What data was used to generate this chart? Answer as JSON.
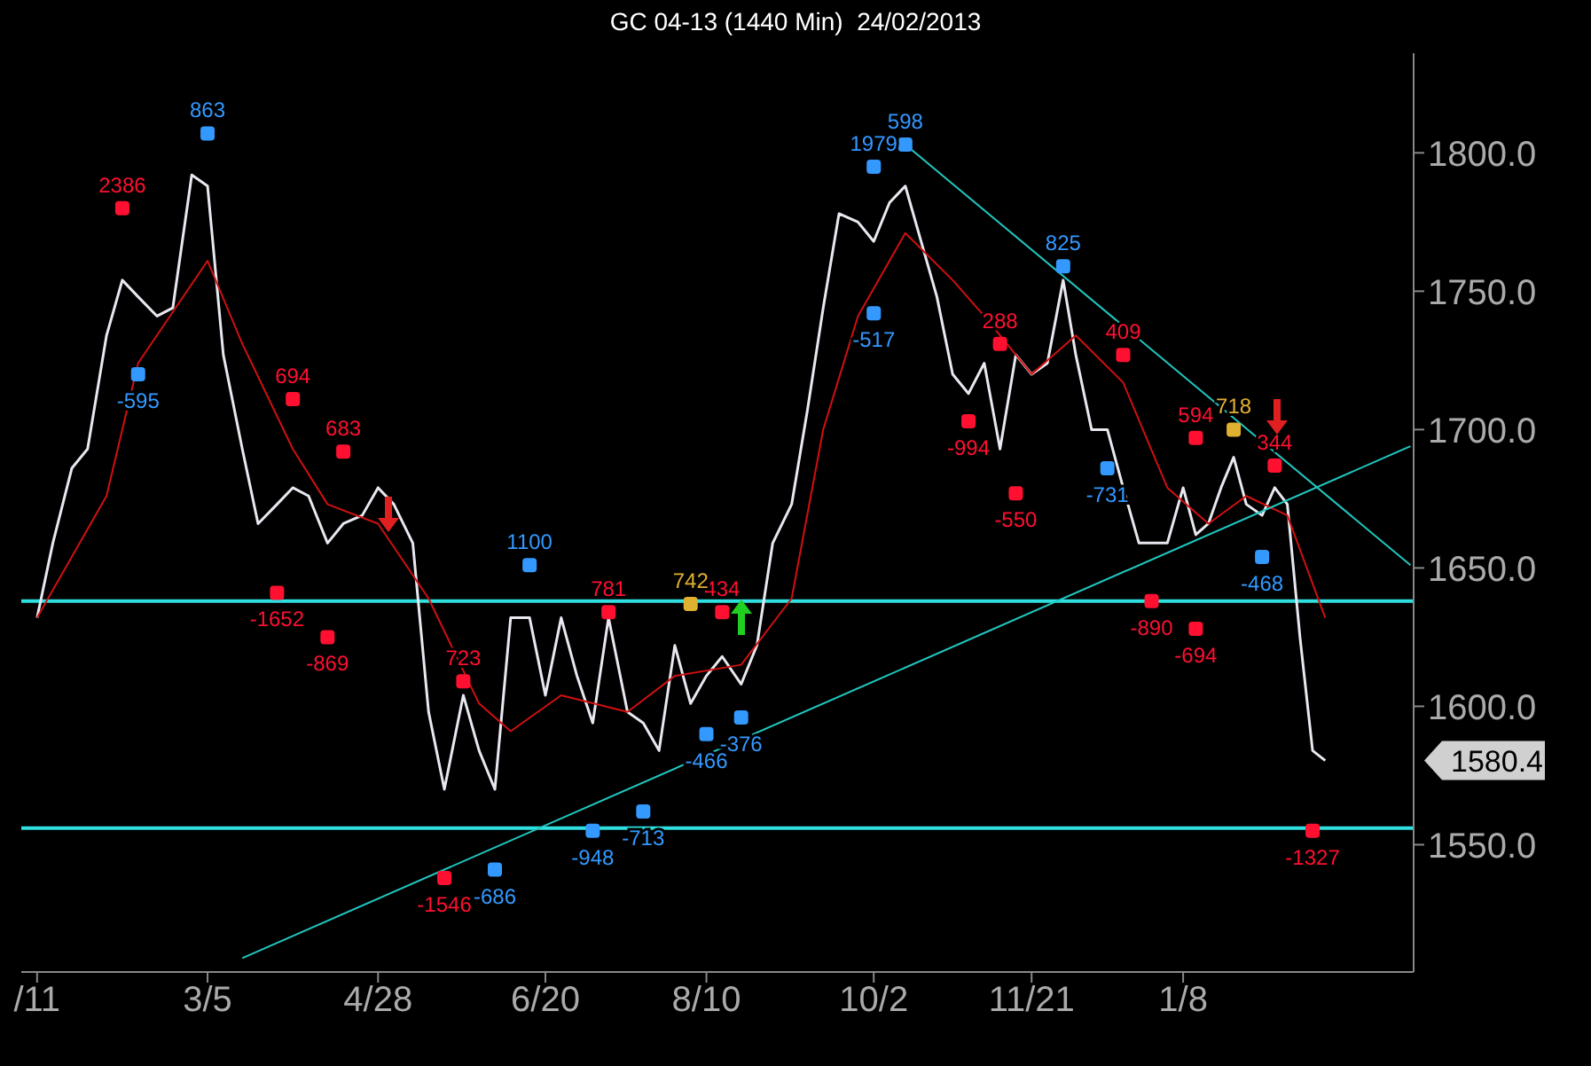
{
  "chart_data": {
    "type": "line",
    "title": "GC 04-13 (1440 Min)  24/02/2013",
    "xlim": [
      "2012-01-06",
      "2013-03-22"
    ],
    "xticks": [
      {
        "value": "2012-01-11",
        "label": "/11"
      },
      {
        "value": "2012-03-05",
        "label": "3/5"
      },
      {
        "value": "2012-04-28",
        "label": "4/28"
      },
      {
        "value": "2012-06-20",
        "label": "6/20"
      },
      {
        "value": "2012-08-10",
        "label": "8/10"
      },
      {
        "value": "2012-10-02",
        "label": "10/2"
      },
      {
        "value": "2012-11-21",
        "label": "11/21"
      },
      {
        "value": "2013-01-08",
        "label": "1/8"
      }
    ],
    "ylim": [
      1504,
      1836
    ],
    "yticks": [
      {
        "value": 1550,
        "label": "1550.0"
      },
      {
        "value": 1600,
        "label": "1600.0"
      },
      {
        "value": 1650,
        "label": "1650.0"
      },
      {
        "value": 1700,
        "label": "1700.0"
      },
      {
        "value": 1750,
        "label": "1750.0"
      },
      {
        "value": 1800,
        "label": "1800.0"
      }
    ],
    "series": [
      {
        "color": "#e8e8f0",
        "x": [
          "2012-01-11",
          "2012-01-16",
          "2012-01-22",
          "2012-01-27",
          "2012-02-02",
          "2012-02-07",
          "2012-02-12",
          "2012-02-18",
          "2012-02-23",
          "2012-02-29",
          "2012-03-05",
          "2012-03-10",
          "2012-03-16",
          "2012-03-21",
          "2012-03-27",
          "2012-04-01",
          "2012-04-06",
          "2012-04-12",
          "2012-04-17",
          "2012-04-23",
          "2012-04-28",
          "2012-05-03",
          "2012-05-09",
          "2012-05-14",
          "2012-05-19",
          "2012-05-25",
          "2012-05-30",
          "2012-06-04",
          "2012-06-09",
          "2012-06-15",
          "2012-06-20",
          "2012-06-25",
          "2012-06-30",
          "2012-07-05",
          "2012-07-10",
          "2012-07-16",
          "2012-07-21",
          "2012-07-26",
          "2012-07-31",
          "2012-08-05",
          "2012-08-10",
          "2012-08-15",
          "2012-08-21",
          "2012-08-26",
          "2012-08-31",
          "2012-09-06",
          "2012-09-11",
          "2012-09-16",
          "2012-09-21",
          "2012-09-27",
          "2012-10-02",
          "2012-10-07",
          "2012-10-12",
          "2012-10-17",
          "2012-10-22",
          "2012-10-27",
          "2012-11-01",
          "2012-11-06",
          "2012-11-11",
          "2012-11-16",
          "2012-11-21",
          "2012-11-26",
          "2012-12-01",
          "2012-12-05",
          "2012-12-10",
          "2012-12-15",
          "2012-12-20",
          "2012-12-25",
          "2012-12-29",
          "2013-01-03",
          "2013-01-08",
          "2013-01-12",
          "2013-01-16",
          "2013-01-20",
          "2013-01-24",
          "2013-01-28",
          "2013-02-02",
          "2013-02-06",
          "2013-02-10",
          "2013-02-14",
          "2013-02-18",
          "2013-02-22"
        ],
        "values": [
          1632,
          1659,
          1686,
          1693,
          1734,
          1754,
          1748,
          1741,
          1744,
          1792,
          1788,
          1727,
          1693,
          1666,
          1673,
          1679,
          1676,
          1659,
          1666,
          1669,
          1679,
          1673,
          1659,
          1598,
          1570,
          1604,
          1584,
          1570,
          1632,
          1632,
          1604,
          1632,
          1611,
          1594,
          1632,
          1598,
          1594,
          1584,
          1622,
          1601,
          1611,
          1618,
          1608,
          1622,
          1659,
          1673,
          1707,
          1744,
          1778,
          1775,
          1768,
          1782,
          1788,
          1768,
          1748,
          1720,
          1713,
          1724,
          1693,
          1727,
          1720,
          1724,
          1754,
          1727,
          1700,
          1700,
          1679,
          1659,
          1659,
          1659,
          1679,
          1662,
          1666,
          1679,
          1690,
          1673,
          1669,
          1679,
          1673,
          1625,
          1584,
          1580.4
        ]
      },
      {
        "color": "#d01010",
        "x": [
          "2012-01-11",
          "2012-02-02",
          "2012-02-12",
          "2012-03-05",
          "2012-03-16",
          "2012-04-01",
          "2012-04-12",
          "2012-04-28",
          "2012-05-14",
          "2012-05-30",
          "2012-06-09",
          "2012-06-25",
          "2012-07-16",
          "2012-07-31",
          "2012-08-21",
          "2012-09-06",
          "2012-09-16",
          "2012-09-27",
          "2012-10-12",
          "2012-10-27",
          "2012-11-06",
          "2012-11-21",
          "2012-12-05",
          "2012-12-20",
          "2013-01-03",
          "2013-01-16",
          "2013-01-28",
          "2013-02-10",
          "2013-02-22"
        ],
        "values": [
          1632,
          1676,
          1724,
          1761,
          1731,
          1693,
          1673,
          1666,
          1639,
          1601,
          1591,
          1604,
          1598,
          1611,
          1615,
          1639,
          1700,
          1741,
          1771,
          1754,
          1741,
          1720,
          1734,
          1717,
          1679,
          1666,
          1676,
          1669,
          1632
        ]
      },
      {
        "color": "#20c8c0",
        "x": [
          "2012-03-16",
          "2013-03-21"
        ],
        "values": [
          1509,
          1694
        ]
      },
      {
        "color": "#20c8c0",
        "x": [
          "2012-10-12",
          "2013-03-21"
        ],
        "values": [
          1803,
          1651
        ]
      },
      {
        "type": "scatter",
        "marker": "square",
        "color": "#ff1030",
        "x": [
          "2012-02-07",
          "2012-04-01",
          "2012-04-17",
          "2012-03-27",
          "2012-04-12",
          "2012-05-25",
          "2012-05-19",
          "2012-07-10",
          "2012-08-15",
          "2012-11-01",
          "2012-11-11",
          "2012-11-16",
          "2012-12-20",
          "2013-01-12",
          "2013-02-06",
          "2012-12-29",
          "2013-01-12",
          "2013-02-18"
        ],
        "values": [
          1780,
          1711,
          1692,
          1641,
          1625,
          1609,
          1538,
          1634,
          1634,
          1703,
          1731,
          1677,
          1727,
          1697,
          1687,
          1638,
          1628,
          1555
        ]
      },
      {
        "type": "scatter",
        "marker": "square",
        "color": "#3399ff",
        "x": [
          "2012-03-05",
          "2012-02-12",
          "2012-06-15",
          "2012-06-04",
          "2012-07-05",
          "2012-07-21",
          "2012-08-10",
          "2012-08-21",
          "2012-10-02",
          "2012-10-12",
          "2012-10-02",
          "2012-12-01",
          "2012-12-15",
          "2013-02-02"
        ],
        "values": [
          1807,
          1720,
          1651,
          1541,
          1555,
          1562,
          1590,
          1596,
          1795,
          1803,
          1742,
          1759,
          1686,
          1654
        ]
      },
      {
        "type": "scatter",
        "marker": "square",
        "color": "#e0b030",
        "x": [
          "2012-08-05",
          "2013-01-24"
        ],
        "values": [
          1637,
          1700
        ]
      }
    ],
    "ref_lines": [
      {
        "axis": "y",
        "value": 1638,
        "color": "#30e0e0"
      },
      {
        "axis": "y",
        "value": 1556,
        "color": "#30e0e0"
      }
    ],
    "annotations": [
      {
        "text": "2386",
        "x": "2012-02-07",
        "y": 1780
      },
      {
        "text": "694",
        "x": "2012-04-01",
        "y": 1711
      },
      {
        "text": "683",
        "x": "2012-04-17",
        "y": 1692
      },
      {
        "text": "-1652",
        "x": "2012-03-27",
        "y": 1641
      },
      {
        "text": "-869",
        "x": "2012-04-12",
        "y": 1625
      },
      {
        "text": "723",
        "x": "2012-05-25",
        "y": 1609
      },
      {
        "text": "-1546",
        "x": "2012-05-19",
        "y": 1538
      },
      {
        "text": "781",
        "x": "2012-07-10",
        "y": 1634
      },
      {
        "text": "434",
        "x": "2012-08-15",
        "y": 1634
      },
      {
        "text": "-994",
        "x": "2012-11-01",
        "y": 1703
      },
      {
        "text": "288",
        "x": "2012-11-11",
        "y": 1731
      },
      {
        "text": "-550",
        "x": "2012-11-16",
        "y": 1677
      },
      {
        "text": "409",
        "x": "2012-12-20",
        "y": 1727
      },
      {
        "text": "594",
        "x": "2013-01-12",
        "y": 1697
      },
      {
        "text": "344",
        "x": "2013-02-06",
        "y": 1687
      },
      {
        "text": "-890",
        "x": "2012-12-29",
        "y": 1638
      },
      {
        "text": "-694",
        "x": "2013-01-12",
        "y": 1628
      },
      {
        "text": "-1327",
        "x": "2013-02-18",
        "y": 1555
      },
      {
        "text": "863",
        "x": "2012-03-05",
        "y": 1807
      },
      {
        "text": "-595",
        "x": "2012-02-12",
        "y": 1720
      },
      {
        "text": "1100",
        "x": "2012-06-15",
        "y": 1651
      },
      {
        "text": "-686",
        "x": "2012-06-04",
        "y": 1541
      },
      {
        "text": "-948",
        "x": "2012-07-05",
        "y": 1555
      },
      {
        "text": "-713",
        "x": "2012-07-21",
        "y": 1562
      },
      {
        "text": "-466",
        "x": "2012-08-10",
        "y": 1590
      },
      {
        "text": "-376",
        "x": "2012-08-21",
        "y": 1596
      },
      {
        "text": "1979",
        "x": "2012-10-02",
        "y": 1795
      },
      {
        "text": "598",
        "x": "2012-10-12",
        "y": 1803
      },
      {
        "text": "-517",
        "x": "2012-10-02",
        "y": 1742
      },
      {
        "text": "825",
        "x": "2012-12-01",
        "y": 1759
      },
      {
        "text": "-731",
        "x": "2012-12-15",
        "y": 1686
      },
      {
        "text": "-468",
        "x": "2013-02-02",
        "y": 1654
      },
      {
        "text": "742",
        "x": "2012-08-05",
        "y": 1637
      },
      {
        "text": "718",
        "x": "2013-01-24",
        "y": 1700
      },
      "1580.4"
    ]
  }
}
